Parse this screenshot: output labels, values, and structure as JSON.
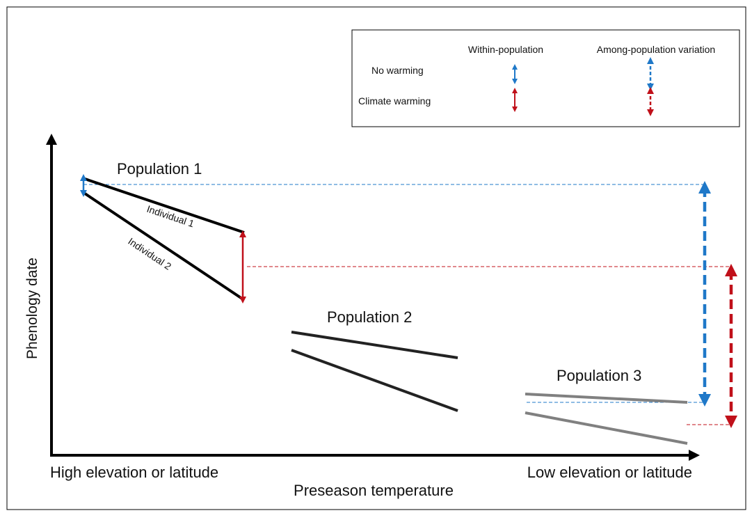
{
  "axes": {
    "y_label": "Phenology date",
    "x_label": "Preseason temperature",
    "x_left_label": "High elevation or latitude",
    "x_right_label": "Low elevation or latitude"
  },
  "legend": {
    "col_within": "Within-population",
    "col_among": "Among-population variation",
    "row_no_warming": "No warming",
    "row_climate_warming": "Climate warming"
  },
  "populations": {
    "pop1": "Population 1",
    "pop2": "Population 2",
    "pop3": "Population 3",
    "individual1": "Individual 1",
    "individual2": "Individual 2"
  },
  "colors": {
    "no_warming": "#1f78c8",
    "climate_warming": "#c0101a",
    "pop1_lines": "#000000",
    "pop2_lines": "#222222",
    "pop3_lines": "#808080"
  }
}
